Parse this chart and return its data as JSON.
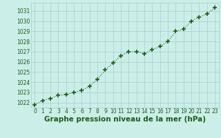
{
  "x": [
    0,
    1,
    2,
    3,
    4,
    5,
    6,
    7,
    8,
    9,
    10,
    11,
    12,
    13,
    14,
    15,
    16,
    17,
    18,
    19,
    20,
    21,
    22,
    23
  ],
  "y": [
    1021.8,
    1022.2,
    1022.4,
    1022.7,
    1022.8,
    1023.0,
    1023.2,
    1023.6,
    1024.3,
    1025.2,
    1025.9,
    1026.6,
    1027.0,
    1027.0,
    1026.8,
    1027.2,
    1027.5,
    1028.0,
    1029.0,
    1029.2,
    1030.0,
    1030.4,
    1030.7,
    1031.3
  ],
  "bg_color": "#cceee8",
  "line_color": "#1a5c1a",
  "marker_color": "#1a5c1a",
  "grid_color": "#aacccc",
  "xlabel": "Graphe pression niveau de la mer (hPa)",
  "xlabel_color": "#1a5c1a",
  "ylabel_ticks": [
    1022,
    1023,
    1024,
    1025,
    1026,
    1027,
    1028,
    1029,
    1030,
    1031
  ],
  "ylim": [
    1021.5,
    1031.8
  ],
  "xlim": [
    -0.5,
    23.5
  ],
  "xticks": [
    0,
    1,
    2,
    3,
    4,
    5,
    6,
    7,
    8,
    9,
    10,
    11,
    12,
    13,
    14,
    15,
    16,
    17,
    18,
    19,
    20,
    21,
    22,
    23
  ],
  "tick_fontsize": 5.5,
  "xlabel_fontsize": 7.5
}
